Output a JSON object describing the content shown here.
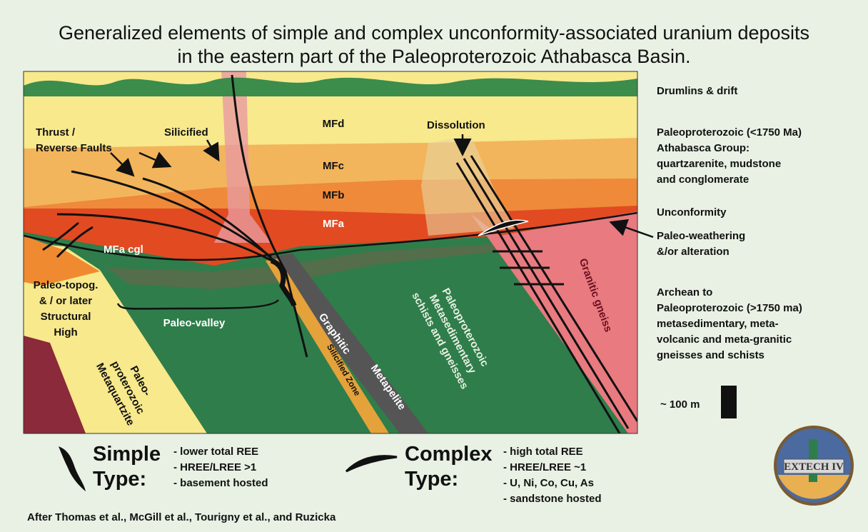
{
  "title": [
    "Generalized elements of simple and complex unconformity-associated uranium deposits",
    "in the eastern part of the Paleoproterozoic Athabasca Basin."
  ],
  "section": {
    "layers": [
      "MFd",
      "MFc",
      "MFb",
      "MFa",
      "MFa cgl"
    ],
    "thrust": [
      "Thrust /",
      "Reverse Faults"
    ],
    "silicified": "Silicified",
    "dissolution": "Dissolution",
    "structural_high": [
      "Paleo-topog.",
      "& / or later",
      "Structural",
      "High"
    ],
    "paleo_valley": "Paleo-valley",
    "metaquartzite": [
      "Paleo-",
      "proterozoic",
      "Metaquartzite"
    ],
    "graphitic": [
      "Graphitic",
      "Metapelite"
    ],
    "silicified_zone": "Silicified Zone",
    "metasedimentary": [
      "Paleoproterozoic",
      "Metasedimentary",
      "schists and gneisses"
    ],
    "granitic": "Granitic gneiss"
  },
  "legend": [
    [
      "Drumlins & drift"
    ],
    [
      "Paleoproterozoic (<1750 Ma)",
      "Athabasca Group:",
      "quartzarenite, mudstone",
      "and conglomerate"
    ],
    [
      "Unconformity"
    ],
    [
      "Paleo-weathering",
      "&/or alteration"
    ],
    [
      "Archean to",
      "Paleoproterozoic (>1750 ma)",
      "metasedimentary, meta-",
      "volcanic and meta-granitic",
      "gneisses and schists"
    ]
  ],
  "scale": "~ 100 m",
  "types": [
    {
      "name": "Simple",
      "label": "Type:",
      "notes": [
        "- lower total REE",
        "- HREE/LREE >1",
        "- basement hosted"
      ]
    },
    {
      "name": "Complex",
      "label": "Type:",
      "notes": [
        "- high total REE",
        "- HREE/LREE ~1",
        "- U, Ni, Co, Cu, As",
        "- sandstone hosted"
      ]
    }
  ],
  "credit": "After Thomas et al., McGill et al., Tourigny et al., and Ruzicka",
  "logo": "EXTECH IV"
}
